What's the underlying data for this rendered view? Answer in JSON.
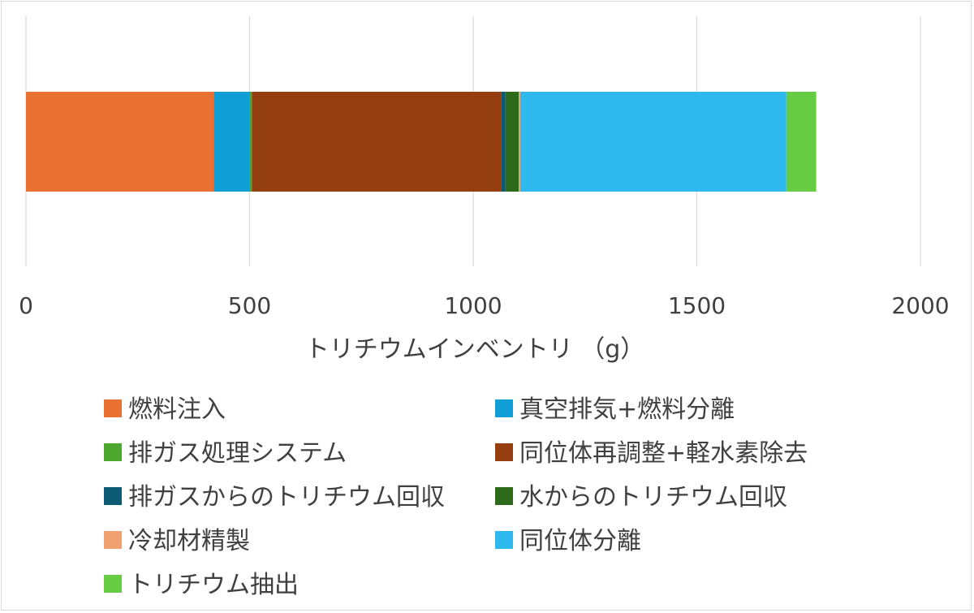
{
  "chart_data": {
    "type": "bar",
    "orientation": "horizontal",
    "stacked": true,
    "title": "",
    "xlabel": "トリチウムインベントリ （g）",
    "ylabel": "",
    "xlim": [
      0,
      2000
    ],
    "x_ticks": [
      "0",
      "500",
      "1000",
      "1500",
      "2000"
    ],
    "grid": "vertical",
    "legend_position": "bottom",
    "categories": [
      ""
    ],
    "series": [
      {
        "name": "燃料注入",
        "values": [
          420
        ],
        "color": "#E97132"
      },
      {
        "name": "真空排気+燃料分離",
        "values": [
          80
        ],
        "color": "#0F9ED5"
      },
      {
        "name": "排ガス処理システム",
        "values": [
          5
        ],
        "color": "#4EA72E"
      },
      {
        "name": "同位体再調整+軽水素除去",
        "values": [
          557
        ],
        "color": "#953F10"
      },
      {
        "name": "排ガスからのトリチウム回収",
        "values": [
          10
        ],
        "color": "#0D5A74"
      },
      {
        "name": "水からのトリチウム回収",
        "values": [
          30
        ],
        "color": "#2D6A1A"
      },
      {
        "name": "冷却材精製",
        "values": [
          3
        ],
        "color": "#F0A071"
      },
      {
        "name": "同位体分離",
        "values": [
          595
        ],
        "color": "#2DB8EE"
      },
      {
        "name": "トリチウム抽出",
        "values": [
          67
        ],
        "color": "#66CC44"
      }
    ]
  }
}
